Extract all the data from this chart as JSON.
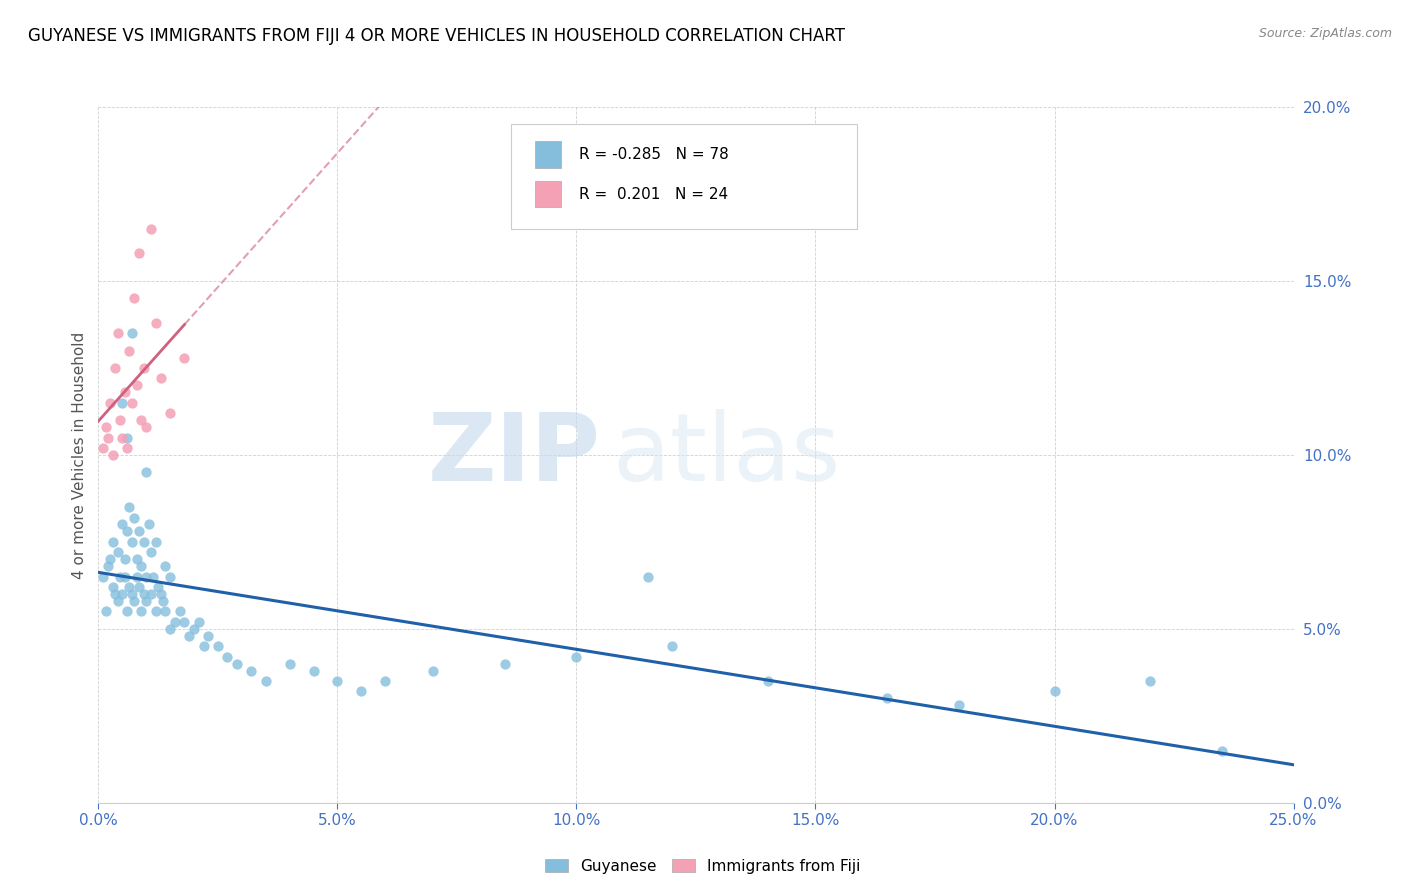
{
  "title": "GUYANESE VS IMMIGRANTS FROM FIJI 4 OR MORE VEHICLES IN HOUSEHOLD CORRELATION CHART",
  "source": "Source: ZipAtlas.com",
  "xlim": [
    0,
    25.0
  ],
  "ylim": [
    0,
    20.0
  ],
  "xticks": [
    0,
    5,
    10,
    15,
    20,
    25
  ],
  "yticks": [
    0,
    5,
    10,
    15,
    20
  ],
  "legend_label1": "Guyanese",
  "legend_label2": "Immigrants from Fiji",
  "r1": "-0.285",
  "n1": "78",
  "r2": "0.201",
  "n2": "24",
  "color_blue": "#85bedc",
  "color_pink": "#f4a0b5",
  "color_trendline_blue": "#2060a8",
  "color_trendline_pink": "#d06080",
  "watermark_zip": "ZIP",
  "watermark_atlas": "atlas",
  "ylabel": "4 or more Vehicles in Household",
  "tick_color": "#4472c4",
  "guyanese_x": [
    0.1,
    0.15,
    0.2,
    0.25,
    0.3,
    0.3,
    0.35,
    0.4,
    0.4,
    0.45,
    0.5,
    0.5,
    0.55,
    0.55,
    0.6,
    0.6,
    0.65,
    0.65,
    0.7,
    0.7,
    0.75,
    0.75,
    0.8,
    0.8,
    0.85,
    0.85,
    0.9,
    0.9,
    0.95,
    0.95,
    1.0,
    1.0,
    1.05,
    1.1,
    1.1,
    1.15,
    1.2,
    1.2,
    1.25,
    1.3,
    1.35,
    1.4,
    1.4,
    1.5,
    1.5,
    1.6,
    1.7,
    1.8,
    1.9,
    2.0,
    2.1,
    2.2,
    2.3,
    2.5,
    2.7,
    2.9,
    3.2,
    3.5,
    4.0,
    4.5,
    5.0,
    5.5,
    6.0,
    7.0,
    8.5,
    10.0,
    12.0,
    14.0,
    16.5,
    18.0,
    20.0,
    22.0,
    23.5,
    11.5,
    1.0,
    0.5,
    0.6,
    0.7
  ],
  "guyanese_y": [
    6.5,
    5.5,
    6.8,
    7.0,
    6.2,
    7.5,
    6.0,
    5.8,
    7.2,
    6.5,
    6.0,
    8.0,
    6.5,
    7.0,
    5.5,
    7.8,
    6.2,
    8.5,
    6.0,
    7.5,
    5.8,
    8.2,
    6.5,
    7.0,
    6.2,
    7.8,
    5.5,
    6.8,
    6.0,
    7.5,
    5.8,
    6.5,
    8.0,
    6.0,
    7.2,
    6.5,
    5.5,
    7.5,
    6.2,
    6.0,
    5.8,
    5.5,
    6.8,
    5.0,
    6.5,
    5.2,
    5.5,
    5.2,
    4.8,
    5.0,
    5.2,
    4.5,
    4.8,
    4.5,
    4.2,
    4.0,
    3.8,
    3.5,
    4.0,
    3.8,
    3.5,
    3.2,
    3.5,
    3.8,
    4.0,
    4.2,
    4.5,
    3.5,
    3.0,
    2.8,
    3.2,
    3.5,
    1.5,
    6.5,
    9.5,
    11.5,
    10.5,
    13.5
  ],
  "fiji_x": [
    0.1,
    0.15,
    0.2,
    0.25,
    0.3,
    0.35,
    0.4,
    0.45,
    0.5,
    0.55,
    0.6,
    0.65,
    0.7,
    0.75,
    0.8,
    0.85,
    0.9,
    0.95,
    1.0,
    1.1,
    1.2,
    1.3,
    1.5,
    1.8
  ],
  "fiji_y": [
    10.2,
    10.8,
    10.5,
    11.5,
    10.0,
    12.5,
    13.5,
    11.0,
    10.5,
    11.8,
    10.2,
    13.0,
    11.5,
    14.5,
    12.0,
    15.8,
    11.0,
    12.5,
    10.8,
    16.5,
    13.8,
    12.2,
    11.2,
    12.8
  ]
}
